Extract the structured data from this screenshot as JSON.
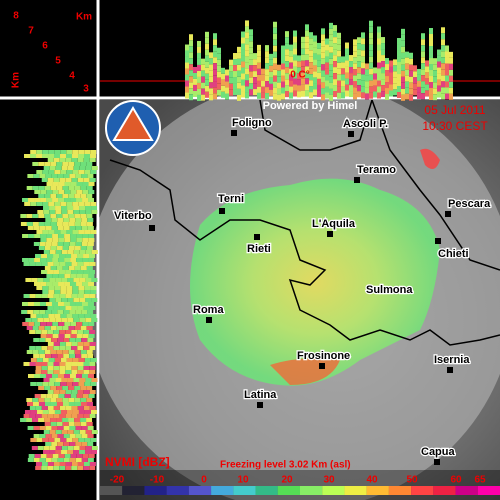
{
  "height_scale": {
    "unit_top": "Km",
    "unit_side": "Km",
    "levels": [
      8,
      7,
      6,
      5,
      4,
      3
    ]
  },
  "freezing_marker": "0 C°",
  "header": {
    "credit": "Powered by Himel",
    "date": "05 Jul 2011",
    "time": "10:30 CEST"
  },
  "cities": [
    {
      "name": "Foligno"
    },
    {
      "name": "Ascoli P."
    },
    {
      "name": "Teramo"
    },
    {
      "name": "Terni"
    },
    {
      "name": "Pescara"
    },
    {
      "name": "Viterbo"
    },
    {
      "name": "Rieti"
    },
    {
      "name": "L'Aquila"
    },
    {
      "name": "Chieti"
    },
    {
      "name": "Sulmona"
    },
    {
      "name": "Roma"
    },
    {
      "name": "Frosinone"
    },
    {
      "name": "Isernia"
    },
    {
      "name": "Latina"
    },
    {
      "name": "Capua"
    }
  ],
  "legend": {
    "product": "NVMI [dBZ]",
    "freezing_level": "Freezing level  3.02 Km (asl)",
    "ticks": [
      -20,
      -10,
      0,
      10,
      20,
      30,
      40,
      50,
      60,
      65
    ]
  }
}
